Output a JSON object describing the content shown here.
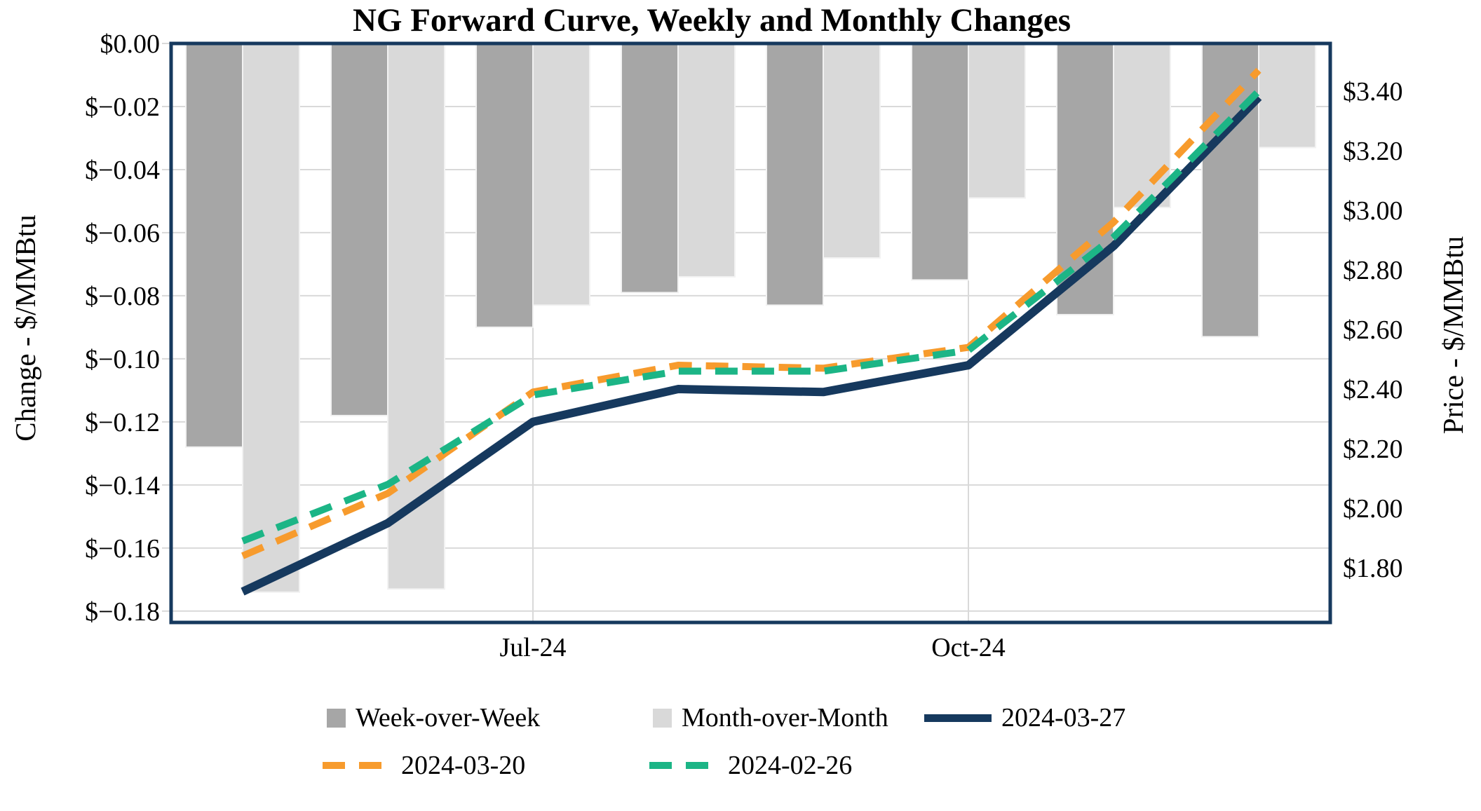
{
  "title": "NG Forward Curve, Weekly and Monthly Changes",
  "chart_data": {
    "type": "combo-bar-line",
    "title": "NG Forward Curve, Weekly and Monthly Changes",
    "num_groups": 8,
    "x_axis": {
      "tick_labels": [
        {
          "group_index": 2,
          "label": "Jul-24"
        },
        {
          "group_index": 5,
          "label": "Oct-24"
        }
      ]
    },
    "left_axis": {
      "title": "Change - $/MMBtu",
      "tick_labels": [
        "$0.00",
        "$−0.02",
        "$−0.04",
        "$−0.06",
        "$−0.08",
        "$−0.10",
        "$−0.12",
        "$−0.14",
        "$−0.16",
        "$−0.18"
      ],
      "tick_step": 0.02,
      "max": 0,
      "min": -0.1836,
      "gridlines": true
    },
    "right_axis": {
      "title": "Price - $/MMBtu",
      "tick_labels": [
        "$3.40",
        "$3.20",
        "$3.00",
        "$2.80",
        "$2.60",
        "$2.40",
        "$2.20",
        "$2.00",
        "$1.80"
      ],
      "tick_start": 3.4,
      "tick_step": 0.2,
      "max": 3.56,
      "min": 1.6167
    },
    "bar_series": [
      {
        "name": "Week-over-Week",
        "color": "#a6a6a6",
        "values": [
          -0.128,
          -0.118,
          -0.09,
          -0.079,
          -0.083,
          -0.075,
          -0.086,
          -0.093
        ]
      },
      {
        "name": "Month-over-Month",
        "color": "#d9d9d9",
        "values": [
          -0.174,
          -0.173,
          -0.083,
          -0.074,
          -0.068,
          -0.049,
          -0.052,
          -0.033
        ]
      }
    ],
    "line_series": [
      {
        "name": "2024-03-27",
        "color": "#16395e",
        "dash": false,
        "values": [
          1.72,
          1.95,
          2.29,
          2.4,
          2.39,
          2.48,
          2.88,
          3.38
        ]
      },
      {
        "name": "2024-03-20",
        "color": "#f79b2d",
        "dash": true,
        "values": [
          1.84,
          2.05,
          2.39,
          2.48,
          2.47,
          2.54,
          2.96,
          3.47
        ]
      },
      {
        "name": "2024-02-26",
        "color": "#1cb586",
        "dash": true,
        "values": [
          1.89,
          2.08,
          2.38,
          2.46,
          2.46,
          2.53,
          2.91,
          3.4
        ]
      }
    ],
    "legend": {
      "position": "bottom",
      "rows": [
        [
          "Week-over-Week",
          "Month-over-Month",
          "2024-03-27"
        ],
        [
          "2024-03-20",
          "2024-02-26"
        ]
      ]
    },
    "style": {
      "border_color": "#16395e",
      "gridline_color": "#d9d9d9",
      "background": "#ffffff"
    }
  }
}
